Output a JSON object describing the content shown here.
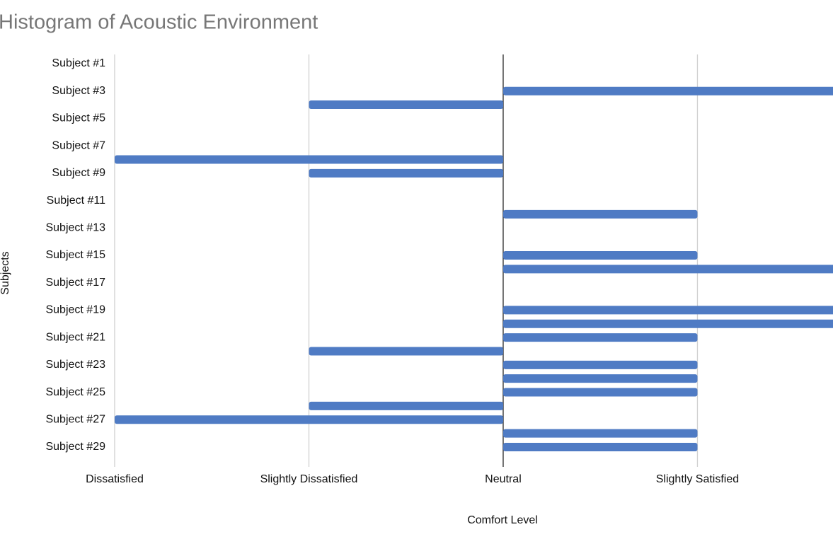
{
  "chart_data": {
    "type": "barh",
    "title": "Histogram of Acoustic Environment",
    "x_label": "Comfort Level",
    "y_label": "Subjects",
    "categories": [
      "Subject #1",
      null,
      "Subject #3",
      null,
      "Subject #5",
      null,
      "Subject #7",
      null,
      "Subject #9",
      null,
      "Subject #11",
      null,
      "Subject #13",
      null,
      "Subject #15",
      null,
      "Subject #17",
      null,
      "Subject #19",
      null,
      "Subject #21",
      null,
      "Subject #23",
      null,
      "Subject #25",
      null,
      "Subject #27",
      null,
      "Subject #29",
      null
    ],
    "values": [
      0,
      0,
      2,
      -1,
      0,
      0,
      0,
      -2,
      -1,
      0,
      0,
      1,
      0,
      0,
      1,
      2,
      0,
      0,
      2,
      2,
      1,
      -1,
      1,
      1,
      1,
      -1,
      -2,
      1,
      1,
      0
    ],
    "color": "#4f7bc4",
    "xlim": [
      -2,
      1.7
    ],
    "xticks": [
      {
        "value": -2,
        "label": "Dissatisfied"
      },
      {
        "value": -1,
        "label": "Slightly Dissatisfied"
      },
      {
        "value": 0,
        "label": "Neutral"
      },
      {
        "value": 1,
        "label": "Slightly Satisfied"
      }
    ],
    "grid": true
  }
}
